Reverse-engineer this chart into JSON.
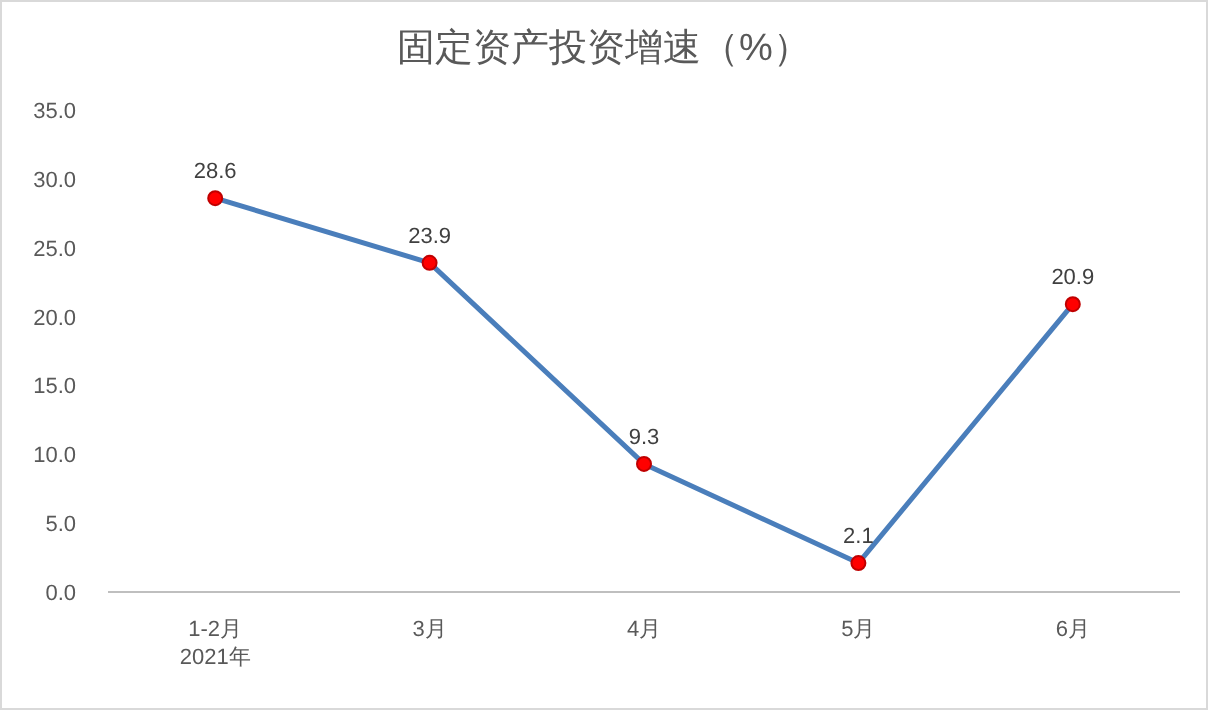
{
  "chart_data": {
    "type": "line",
    "title": "固定资产投资增速（%）",
    "categories": [
      "1-2月\n2021年",
      "3月",
      "4月",
      "5月",
      "6月"
    ],
    "series": [
      {
        "color": "#4a7ebb",
        "values": [
          28.6,
          23.9,
          9.3,
          2.1,
          20.9
        ]
      }
    ],
    "marker": "circle",
    "line_style": "solid",
    "data_labels": true,
    "grid": false,
    "ylim": [
      0,
      35
    ],
    "yticks": [
      {
        "value": 0,
        "label": "0.0"
      },
      {
        "value": 5,
        "label": "5.0"
      },
      {
        "value": 10,
        "label": "10.0"
      },
      {
        "value": 15,
        "label": "15.0"
      },
      {
        "value": 20,
        "label": "20.0"
      },
      {
        "value": 25,
        "label": "25.0"
      },
      {
        "value": 30,
        "label": "30.0"
      },
      {
        "value": 35,
        "label": "35.0"
      }
    ]
  }
}
